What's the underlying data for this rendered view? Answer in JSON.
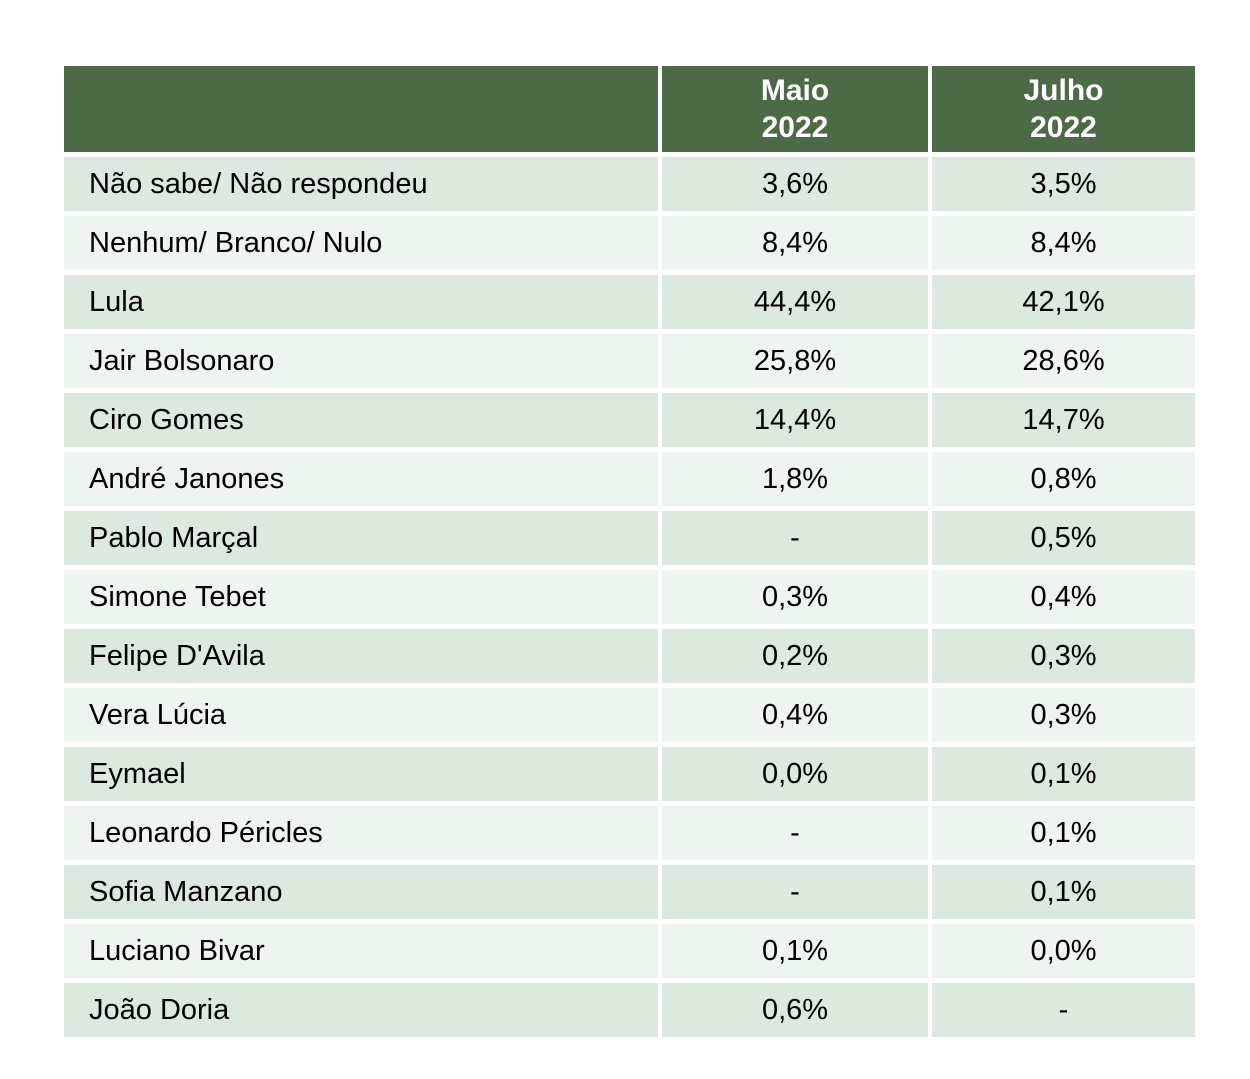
{
  "chart_data": {
    "type": "table",
    "categories": [
      "Não sabe/ Não respondeu",
      "Nenhum/ Branco/ Nulo",
      "Lula",
      "Jair Bolsonaro",
      "Ciro Gomes",
      "André Janones",
      "Pablo Marçal",
      "Simone Tebet",
      "Felipe D'Avila",
      "Vera Lúcia",
      "Eymael",
      "Leonardo Péricles",
      "Sofia Manzano",
      "Luciano Bivar",
      "João Doria"
    ],
    "series": [
      {
        "name": "Maio 2022",
        "values": [
          "3,6%",
          "8,4%",
          "44,4%",
          "25,8%",
          "14,4%",
          "1,8%",
          "-",
          "0,3%",
          "0,2%",
          "0,4%",
          "0,0%",
          "-",
          "-",
          "0,1%",
          "0,6%"
        ]
      },
      {
        "name": "Julho 2022",
        "values": [
          "3,5%",
          "8,4%",
          "42,1%",
          "28,6%",
          "14,7%",
          "0,8%",
          "0,5%",
          "0,4%",
          "0,3%",
          "0,3%",
          "0,1%",
          "0,1%",
          "0,1%",
          "0,0%",
          "-"
        ]
      }
    ],
    "title": "",
    "legend_position": "none",
    "grid": "white-separators"
  },
  "table_headers": [
    {
      "line1": "Maio",
      "line2": "2022"
    },
    {
      "line1": "Julho",
      "line2": "2022"
    }
  ],
  "colors": {
    "header_bg": "#4b6a45",
    "header_text": "#ffffff",
    "row_odd_bg": "#dbe9de",
    "row_even_bg": "#eef5f0",
    "body_text": "#000000",
    "separator": "#ffffff",
    "page_bg": "#ffffff"
  }
}
